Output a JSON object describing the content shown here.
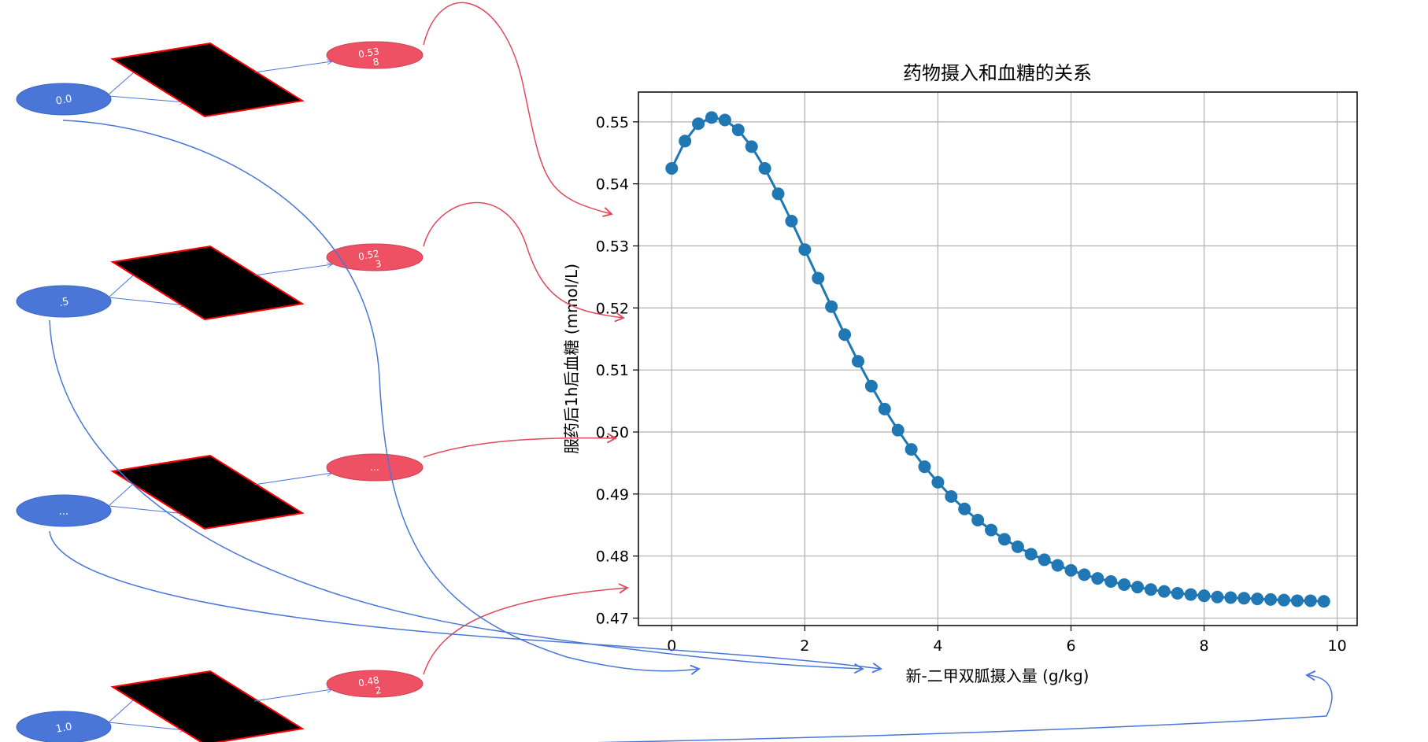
{
  "chart_data": {
    "type": "line",
    "title": "药物摄入和血糖的关系",
    "xlabel": "新-二甲双胍摄入量 (g/kg)",
    "ylabel": "服药后1h后血糖 (mmol/L)",
    "xlim": [
      -0.5,
      10.3
    ],
    "ylim": [
      0.4688,
      0.5548
    ],
    "xticks": [
      0,
      2,
      4,
      6,
      8,
      10
    ],
    "yticks": [
      0.47,
      0.48,
      0.49,
      0.5,
      0.51,
      0.52,
      0.53,
      0.54,
      0.55
    ],
    "ytick_labels": [
      "0.47",
      "0.48",
      "0.49",
      "0.50",
      "0.51",
      "0.52",
      "0.53",
      "0.54",
      "0.55"
    ],
    "grid": true,
    "series": [
      {
        "color": "#1f77b4",
        "marker": "circle",
        "x": [
          0.0,
          0.2,
          0.4,
          0.6,
          0.8,
          1.0,
          1.2,
          1.4,
          1.6,
          1.8,
          2.0,
          2.2,
          2.4,
          2.6,
          2.8,
          3.0,
          3.2,
          3.4,
          3.6,
          3.8,
          4.0,
          4.2,
          4.4,
          4.6,
          4.8,
          5.0,
          5.2,
          5.4,
          5.6,
          5.8,
          6.0,
          6.2,
          6.4,
          6.6,
          6.8,
          7.0,
          7.2,
          7.4,
          7.6,
          7.8,
          8.0,
          8.2,
          8.4,
          8.6,
          8.8,
          9.0,
          9.2,
          9.4,
          9.6,
          9.8
        ],
        "y": [
          0.5425,
          0.5469,
          0.5497,
          0.5507,
          0.5503,
          0.5487,
          0.546,
          0.5425,
          0.5384,
          0.534,
          0.5294,
          0.5248,
          0.5202,
          0.5157,
          0.5114,
          0.5074,
          0.5037,
          0.5003,
          0.4972,
          0.4944,
          0.4919,
          0.4896,
          0.4876,
          0.4858,
          0.4842,
          0.4827,
          0.4815,
          0.4803,
          0.4794,
          0.4785,
          0.4777,
          0.477,
          0.4764,
          0.4759,
          0.4754,
          0.475,
          0.4746,
          0.4743,
          0.474,
          0.4738,
          0.4736,
          0.4734,
          0.4733,
          0.4732,
          0.4731,
          0.473,
          0.4729,
          0.4728,
          0.4728,
          0.4727
        ]
      }
    ]
  },
  "diagram": {
    "input_nodes": [
      "0.0",
      ".5",
      "...",
      "1.0"
    ],
    "output_nodes": [
      [
        "0.53",
        "8"
      ],
      [
        "0.52",
        "3"
      ],
      [
        "..."
      ],
      [
        "0.48",
        "2"
      ]
    ],
    "colors": {
      "input_node": "#4a76d8",
      "output_node": "#ee5163",
      "hidden_box": "#000000",
      "hidden_box_border": "#ff0000",
      "blue_arrow": "#4a76d8",
      "red_arrow": "#e0495c"
    }
  }
}
